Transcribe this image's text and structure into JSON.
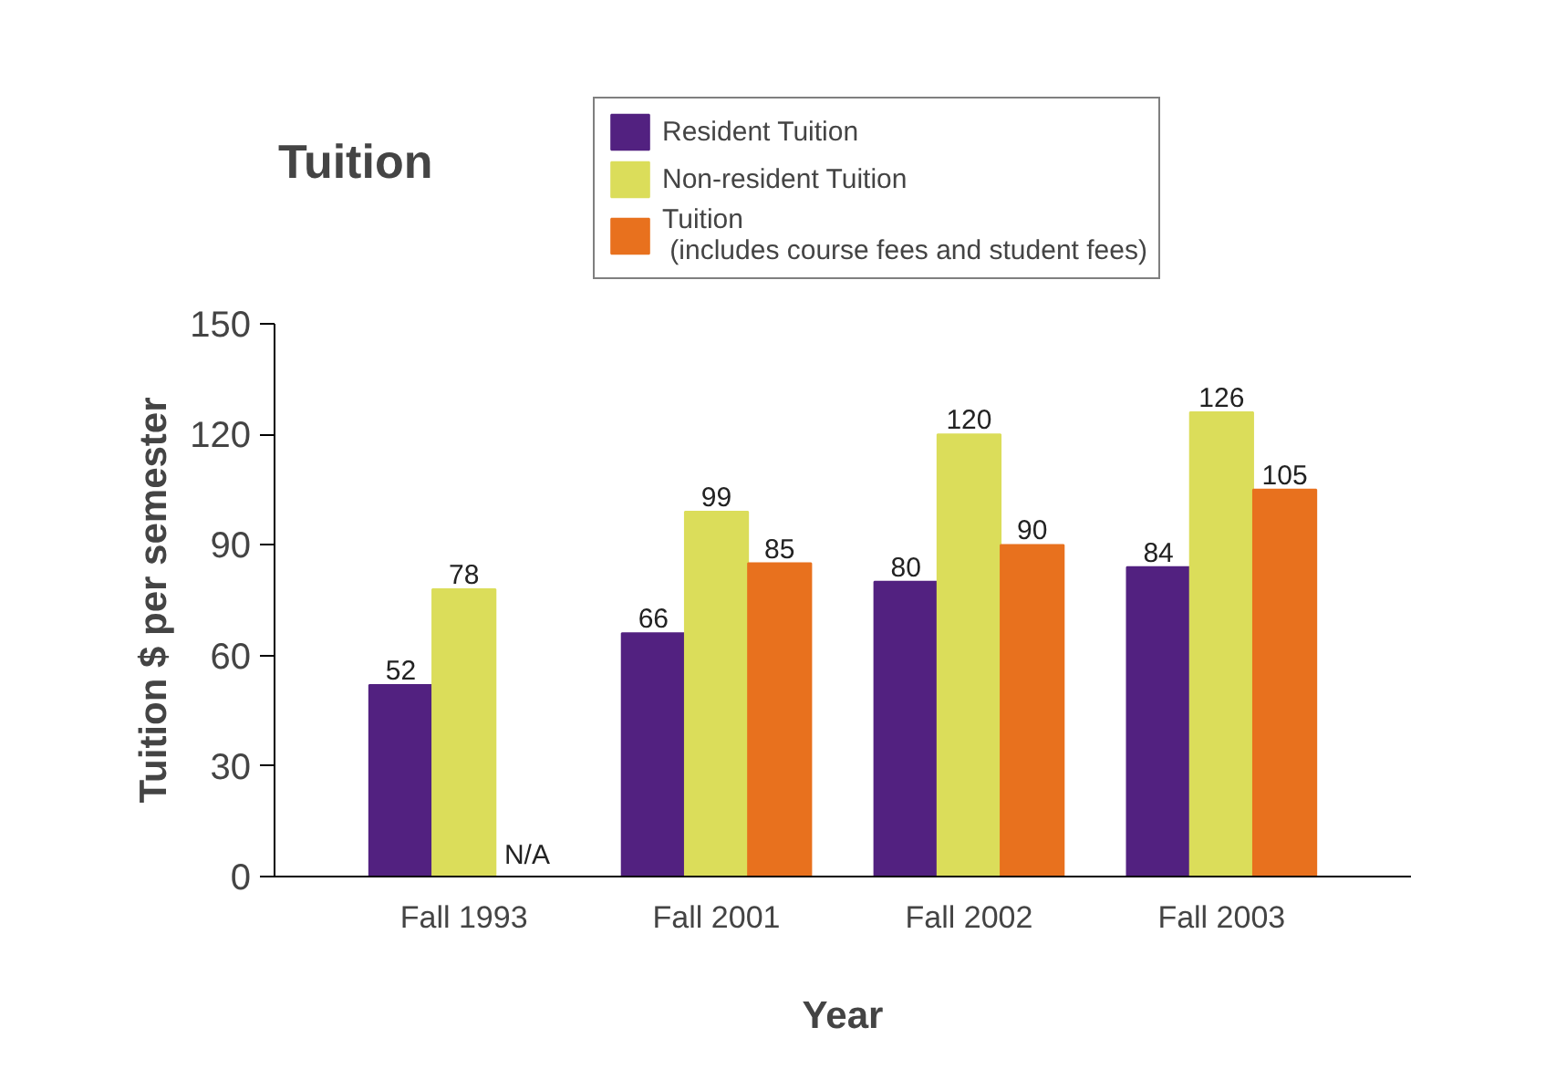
{
  "chart_data": {
    "type": "bar",
    "title": "Tuition",
    "xlabel": "Year",
    "ylabel": "Tuition $ per semester",
    "categories": [
      "Fall 1993",
      "Fall 2001",
      "Fall 2002",
      "Fall 2003"
    ],
    "series": [
      {
        "name": "Resident Tuition",
        "color": "#522180",
        "values": [
          52,
          66,
          80,
          84
        ],
        "value_labels": [
          "52",
          "66",
          "80",
          "84"
        ]
      },
      {
        "name": "Non-resident Tuition",
        "color": "#dbdd5a",
        "values": [
          78,
          99,
          120,
          126
        ],
        "value_labels": [
          "78",
          "99",
          "120",
          "126"
        ]
      },
      {
        "name": "Tuition\n (includes course fees and student fees)",
        "color": "#e8711e",
        "values": [
          null,
          85,
          90,
          105
        ],
        "value_labels": [
          "N/A",
          "85",
          "90",
          "105"
        ]
      }
    ],
    "ylim": [
      0,
      150
    ],
    "yticks": [
      0,
      30,
      60,
      90,
      120,
      150
    ],
    "grid": false,
    "legend": "top right"
  }
}
